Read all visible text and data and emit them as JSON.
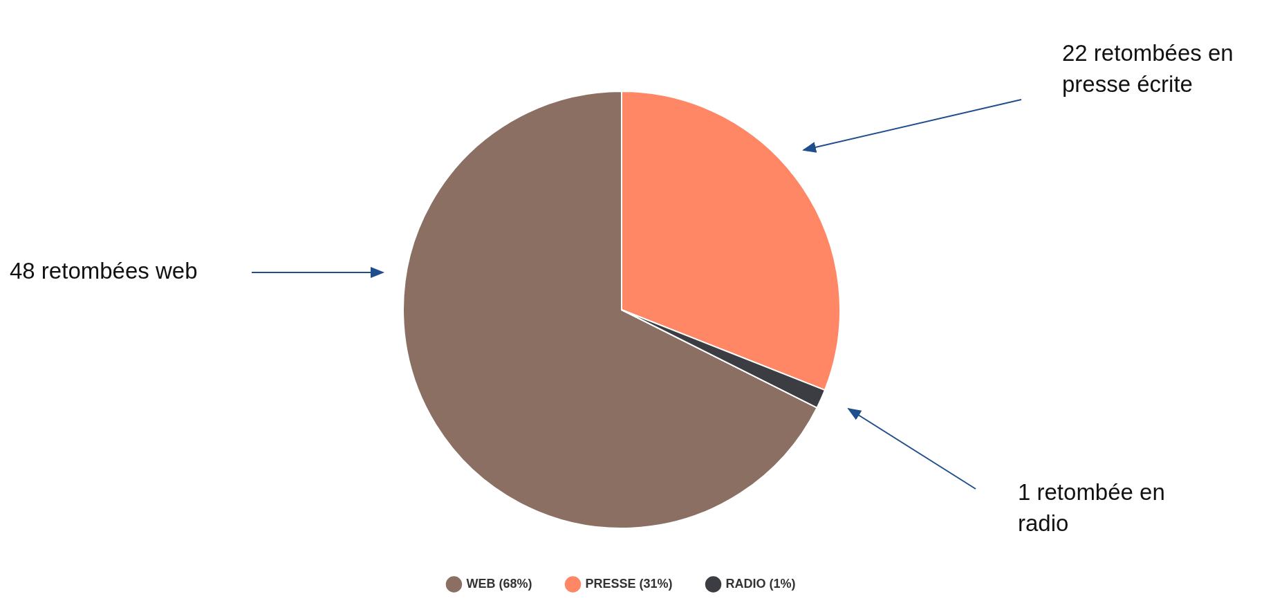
{
  "chart_data": {
    "type": "pie",
    "categories": [
      "WEB (68%)",
      "PRESSE (31%)",
      "RADIO (1%)"
    ],
    "values": [
      48,
      22,
      1
    ],
    "colors": [
      "#8c6f63",
      "#ff8766",
      "#3c3d43"
    ],
    "legend": "bottom",
    "annotations": [
      "22 retombées en presse écrite",
      "48 retombées web",
      "1 retombée en radio"
    ]
  }
}
